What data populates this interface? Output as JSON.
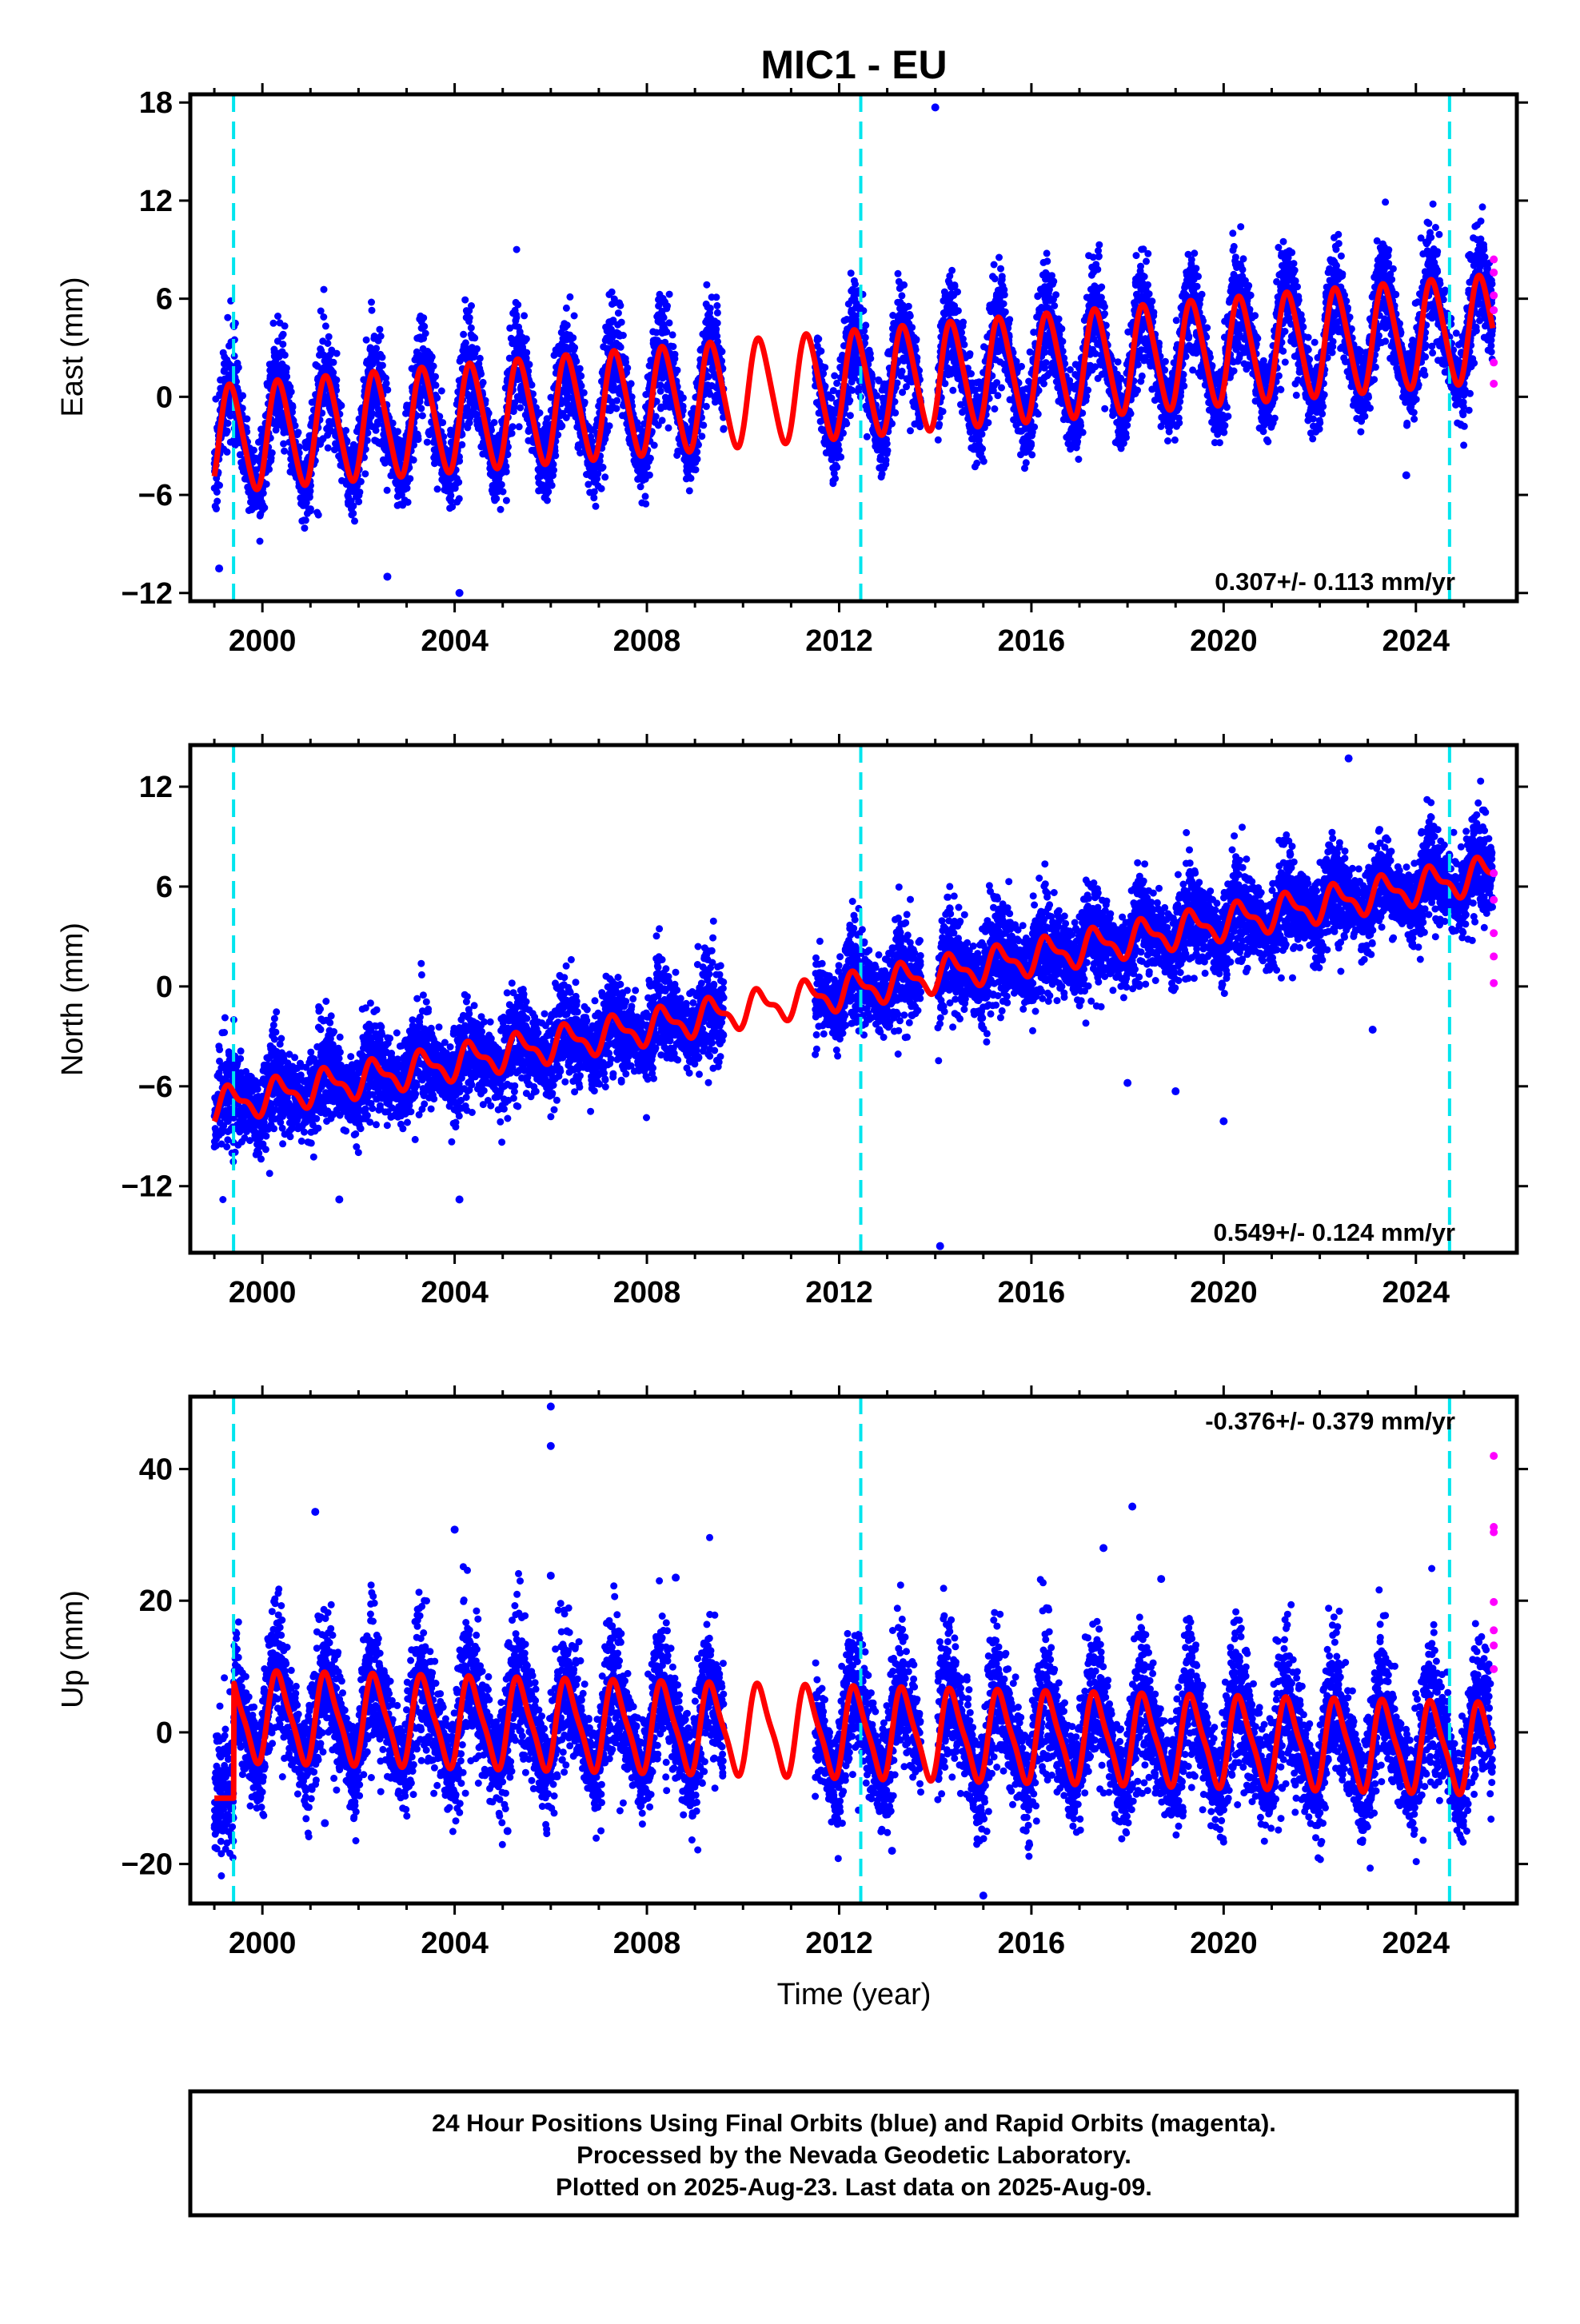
{
  "title": "MIC1 - EU",
  "colors": {
    "final_orbits": "#0000ff",
    "rapid_orbits": "#ff00ff",
    "model": "#ff0000",
    "equipment_change": "#00e5ee"
  },
  "chart_data": [
    {
      "type": "scatter",
      "component": "East",
      "ylabel": "East (mm)",
      "xlabel": "",
      "rate_label": "0.307+/- 0.113 mm/yr",
      "xlim": [
        1998.5,
        2026.1
      ],
      "ylim": [
        -12.5,
        18.5
      ],
      "yticks": [
        18,
        12,
        6,
        0,
        -6,
        -12
      ],
      "xticks": [
        2000,
        2004,
        2008,
        2012,
        2016,
        2020,
        2024
      ],
      "xtick_labels": [
        "2000",
        "2004",
        "2008",
        "2012",
        "2016",
        "2020",
        "2024"
      ],
      "equipment_changes": [
        1999.4,
        2012.45,
        2024.7
      ],
      "data_span": [
        1999.0,
        2025.6
      ],
      "data_gap": [
        2009.6,
        2011.5
      ],
      "model": {
        "trend_start": -2.6,
        "trend_end": 4.2,
        "annual_amplitude": 3.2,
        "semiannual_amplitude": 0.4
      },
      "outliers": [
        [
          2014.0,
          17.7
        ],
        [
          1999.1,
          -10.5
        ],
        [
          2004.1,
          -12.0
        ],
        [
          2002.6,
          -11.0
        ],
        [
          2023.8,
          -4.8
        ]
      ],
      "rapid_orbit_points": [
        [
          2025.62,
          8.4
        ],
        [
          2025.62,
          7.6
        ],
        [
          2025.62,
          6.2
        ],
        [
          2025.62,
          5.3
        ],
        [
          2025.62,
          2.1
        ],
        [
          2025.62,
          0.8
        ]
      ],
      "scatter_noise": 1.4
    },
    {
      "type": "scatter",
      "component": "North",
      "ylabel": "North (mm)",
      "xlabel": "",
      "rate_label": "0.549+/- 0.124 mm/yr",
      "xlim": [
        1998.5,
        2026.1
      ],
      "ylim": [
        -16,
        14.5
      ],
      "yticks": [
        12,
        6,
        0,
        -6,
        -12
      ],
      "xticks": [
        2000,
        2004,
        2008,
        2012,
        2016,
        2020,
        2024
      ],
      "xtick_labels": [
        "2000",
        "2004",
        "2008",
        "2012",
        "2016",
        "2020",
        "2024"
      ],
      "equipment_changes": [
        1999.4,
        2012.45,
        2024.7
      ],
      "data_span": [
        1999.0,
        2025.6
      ],
      "data_gap": [
        2009.6,
        2011.5
      ],
      "model": {
        "trend_start": -7.2,
        "trend_end": 6.8,
        "annual_amplitude": 0.9,
        "semiannual_amplitude": 0.4
      },
      "outliers": [
        [
          2022.6,
          13.7
        ],
        [
          2014.1,
          -15.6
        ],
        [
          2018.0,
          -5.8
        ],
        [
          2019.0,
          -6.3
        ],
        [
          2020.0,
          -8.1
        ],
        [
          2004.1,
          -12.8
        ],
        [
          2001.6,
          -12.8
        ],
        [
          2023.1,
          -2.6
        ]
      ],
      "rapid_orbit_points": [
        [
          2025.62,
          6.8
        ],
        [
          2025.62,
          5.2
        ],
        [
          2025.62,
          3.2
        ],
        [
          2025.62,
          1.8
        ],
        [
          2025.62,
          0.2
        ]
      ],
      "scatter_noise": 1.3
    },
    {
      "type": "scatter",
      "component": "Up",
      "ylabel": "Up (mm)",
      "xlabel": "Time (year)",
      "rate_label": "-0.376+/- 0.379 mm/yr",
      "xlim": [
        1998.5,
        2026.1
      ],
      "ylim": [
        -26,
        51
      ],
      "yticks": [
        40,
        20,
        0,
        -20
      ],
      "xticks": [
        2000,
        2004,
        2008,
        2012,
        2016,
        2020,
        2024
      ],
      "xtick_labels": [
        "2000",
        "2004",
        "2008",
        "2012",
        "2016",
        "2020",
        "2024"
      ],
      "equipment_changes": [
        1999.4,
        2012.45,
        2024.7
      ],
      "data_span": [
        1999.0,
        2025.6
      ],
      "data_gap": [
        2009.6,
        2011.5
      ],
      "model": {
        "trend_start": 2.5,
        "trend_end": -2.5,
        "annual_amplitude": 6.5,
        "semiannual_amplitude": 1.5,
        "pre_offset": -10.0
      },
      "outliers": [
        [
          2006.0,
          49.5
        ],
        [
          2006.0,
          43.5
        ],
        [
          2001.1,
          33.5
        ],
        [
          2004.0,
          30.8
        ],
        [
          2018.1,
          34.3
        ],
        [
          2017.5,
          28.0
        ],
        [
          2006.0,
          23.8
        ],
        [
          2008.6,
          23.5
        ],
        [
          2018.7,
          23.3
        ],
        [
          2015.0,
          -24.8
        ],
        [
          2001.3,
          -13.8
        ],
        [
          2005.1,
          -15.0
        ],
        [
          2013.1,
          -18.0
        ]
      ],
      "rapid_orbit_points": [
        [
          2025.62,
          42.0
        ],
        [
          2025.62,
          31.2
        ],
        [
          2025.62,
          30.4
        ],
        [
          2025.62,
          19.8
        ],
        [
          2025.62,
          15.5
        ],
        [
          2025.62,
          13.2
        ],
        [
          2025.62,
          9.6
        ]
      ],
      "scatter_noise": 4.5
    }
  ],
  "footer": {
    "line1": "24 Hour Positions Using Final Orbits (blue) and Rapid Orbits (magenta).",
    "line2": "Processed by the Nevada Geodetic Laboratory.",
    "line3": "Plotted on 2025-Aug-23. Last data on 2025-Aug-09."
  }
}
